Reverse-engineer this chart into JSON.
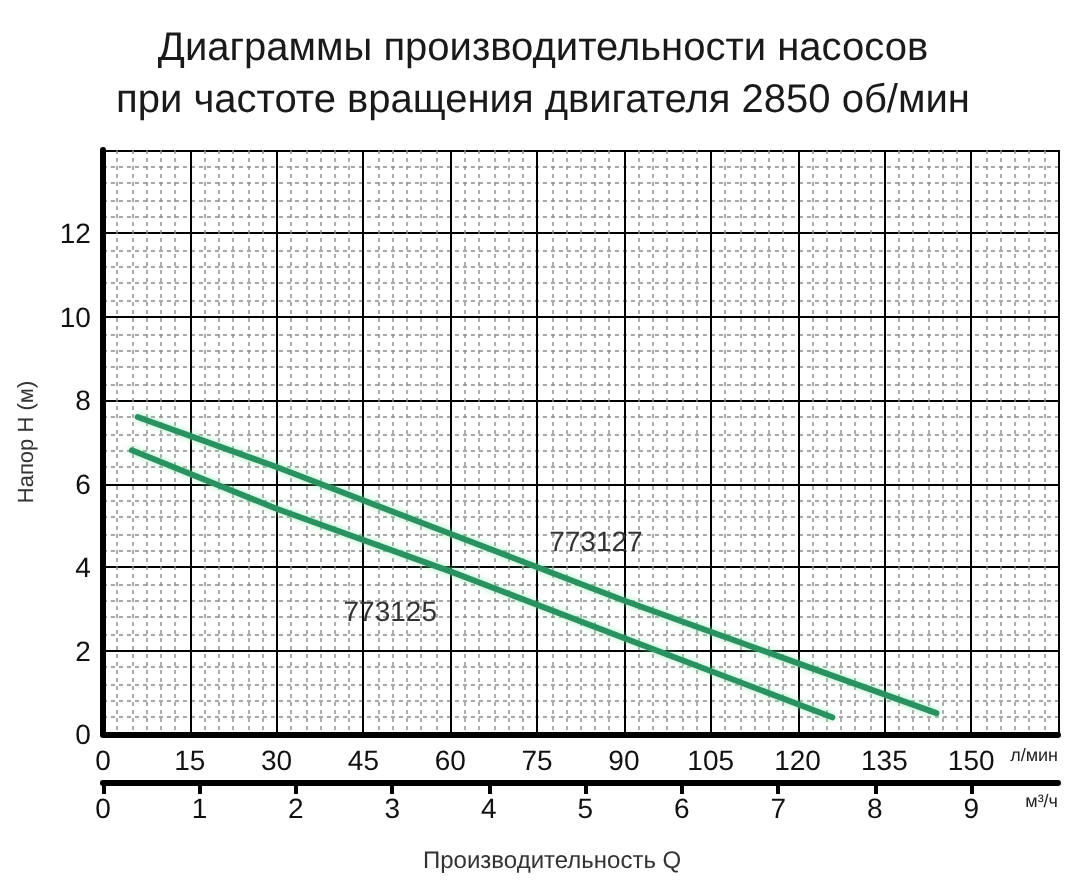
{
  "chart_data": {
    "type": "line",
    "title": "Диаграммы производительности насосов\nпри частоте вращения двигателя 2850 об/мин",
    "xlabel": "л/мин",
    "x2label": "м³/ч",
    "ylabel": "Напор H (м)",
    "annotations": [
      "Производительность Q"
    ],
    "series": [
      {
        "name": "773127",
        "color": "#2b9160",
        "x": [
          6,
          30,
          60,
          90,
          120,
          144
        ],
        "values": [
          7.6,
          6.4,
          4.8,
          3.2,
          1.7,
          0.5
        ]
      },
      {
        "name": "773125",
        "color": "#2b9160",
        "x": [
          5,
          30,
          60,
          90,
          126
        ],
        "values": [
          6.8,
          5.4,
          3.9,
          2.3,
          0.4
        ]
      }
    ],
    "xlim": [
      0,
      165
    ],
    "xticks": [
      0,
      15,
      30,
      45,
      60,
      75,
      90,
      105,
      120,
      135,
      150
    ],
    "x2lim": [
      0,
      9.9
    ],
    "x2ticks": [
      0,
      1,
      2,
      3,
      4,
      5,
      6,
      7,
      8,
      9
    ],
    "ylim": [
      0,
      14
    ],
    "yticks": [
      0,
      2,
      4,
      6,
      8,
      10,
      12
    ],
    "grid": true
  }
}
